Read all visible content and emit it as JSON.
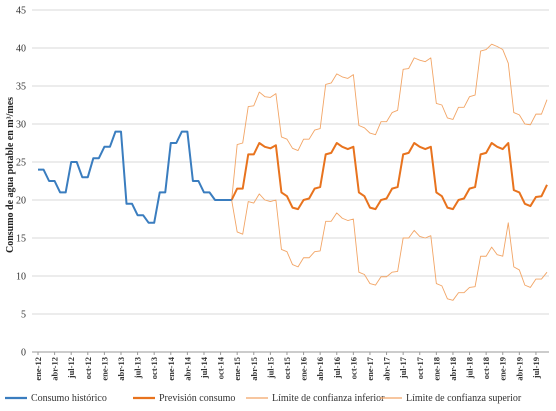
{
  "chart_data": {
    "type": "line",
    "ylabel": "Consumo de agua potable en m³/mes",
    "ylim": [
      0,
      45
    ],
    "yticks": [
      "0",
      "5",
      "10",
      "15",
      "20",
      "25",
      "30",
      "35",
      "40",
      "45"
    ],
    "xticks": [
      "ene-12",
      "abr-12",
      "jul-12",
      "oct-12",
      "ene-13",
      "abr-13",
      "jul-13",
      "oct-13",
      "ene-14",
      "abr-14",
      "jul-14",
      "oct-14",
      "ene-15",
      "abr-15",
      "jul-15",
      "oct-15",
      "ene-16",
      "abr-16",
      "jul-16",
      "oct-16",
      "ene-17",
      "abr-17",
      "jul-17",
      "oct-17",
      "ene-18",
      "abr-18",
      "jul-18",
      "oct-18",
      "ene-19",
      "abr-19",
      "jul-19"
    ],
    "grid": "horizontal",
    "legend_position": "bottom",
    "colors": {
      "historico": "#3a7dbf",
      "prevision": "#e8731e",
      "limite_inferior": "#f2a566",
      "limite_superior": "#f2a566"
    },
    "series": [
      {
        "name": "Consumo histórico",
        "start_month": 0,
        "values": [
          24,
          24,
          22.5,
          22.5,
          21,
          21,
          25,
          25,
          23,
          23,
          25.5,
          25.5,
          27,
          27,
          29,
          29,
          19.5,
          19.5,
          18,
          18,
          17,
          17,
          21,
          21,
          27.5,
          27.5,
          29,
          29,
          22.5,
          22.5,
          21,
          21,
          20,
          20,
          20,
          20
        ]
      },
      {
        "name": "Previsión consumo",
        "start_month": 35,
        "values": [
          20,
          21.5,
          21.5,
          26,
          26,
          27.5,
          27,
          26.8,
          27.2,
          21,
          20.5,
          19,
          18.8,
          20,
          20.2,
          21.5,
          21.7,
          26,
          26.2,
          27.5,
          27,
          26.7,
          27,
          21,
          20.5,
          19,
          18.8,
          20,
          20.2,
          21.5,
          21.7,
          26,
          26.2,
          27.5,
          27,
          26.7,
          27,
          21,
          20.5,
          19,
          18.8,
          20,
          20.2,
          21.5,
          21.7,
          26,
          26.2,
          27.5,
          27,
          26.7,
          27.5,
          21.3,
          21,
          19.5,
          19.2,
          20.4,
          20.5,
          22
        ]
      },
      {
        "name": "Límite de confianza inferior",
        "start_month": 35,
        "values": [
          20,
          15.8,
          15.5,
          19.8,
          19.6,
          20.8,
          20,
          19.8,
          20,
          13.5,
          13.2,
          11.5,
          11.2,
          12.4,
          12.4,
          13.2,
          13.3,
          17.2,
          17.2,
          18.3,
          17.6,
          17.3,
          17.5,
          10.5,
          10.2,
          9,
          8.8,
          9.9,
          9.9,
          10.5,
          10.6,
          15,
          15,
          16,
          15.2,
          15,
          15.3,
          9,
          8.7,
          7,
          6.8,
          7.8,
          7.8,
          8.5,
          8.6,
          12.6,
          12.6,
          13.8,
          12.8,
          12.6,
          17,
          11.2,
          10.8,
          8.8,
          8.5,
          9.6,
          9.6,
          10.5
        ]
      },
      {
        "name": "Límite de confianza superior",
        "start_month": 35,
        "values": [
          20,
          27.3,
          27.5,
          32.3,
          32.4,
          34.2,
          33.6,
          33.5,
          34,
          28.3,
          28,
          26.8,
          26.5,
          28,
          28,
          29.2,
          29.4,
          35.2,
          35.4,
          36.6,
          36.2,
          36,
          36.5,
          29.8,
          29.5,
          28.8,
          28.6,
          30.3,
          30.3,
          31.5,
          31.8,
          37.2,
          37.3,
          38.7,
          38.4,
          38.2,
          38.7,
          32.7,
          32.5,
          30.8,
          30.6,
          32.2,
          32.2,
          33.6,
          33.8,
          39.6,
          39.8,
          40.5,
          40.2,
          39.8,
          38,
          31.5,
          31.2,
          30,
          29.9,
          31.3,
          31.3,
          33.2
        ]
      }
    ]
  }
}
